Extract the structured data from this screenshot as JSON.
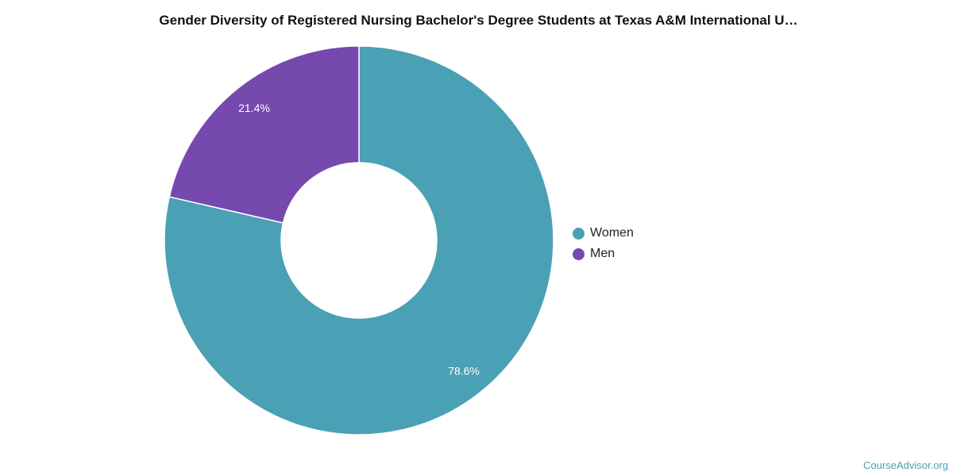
{
  "title": "Gender Diversity of Registered Nursing Bachelor's Degree Students at Texas A&M International U…",
  "credit": "CourseAdvisor.org",
  "chart_data": {
    "type": "pie",
    "title": "Gender Diversity of Registered Nursing Bachelor's Degree Students at Texas A&M International U…",
    "donut": true,
    "legend_position": "right",
    "series": [
      {
        "name": "Women",
        "value": 78.6,
        "label": "78.6%",
        "color": "#4aa0b4"
      },
      {
        "name": "Men",
        "value": 21.4,
        "label": "21.4%",
        "color": "#7549ae"
      }
    ]
  }
}
